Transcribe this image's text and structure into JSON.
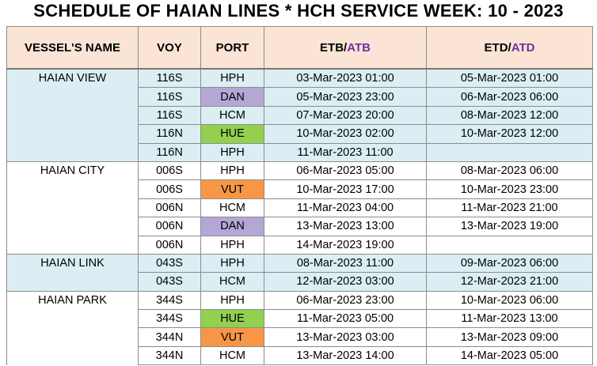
{
  "title": "SCHEDULE OF HAIAN LINES * HCH SERVICE WEEK: 10 - 2023",
  "header": {
    "columns": [
      {
        "parts": [
          "VESSEL'S NAME"
        ]
      },
      {
        "parts": [
          "VOY"
        ]
      },
      {
        "parts": [
          "PORT"
        ]
      },
      {
        "parts": [
          "ETB",
          "/",
          "ATB"
        ]
      },
      {
        "parts": [
          "ETD",
          "/",
          "ATD"
        ]
      }
    ],
    "accent_color": "#7030a0"
  },
  "port_colors": {
    "DAN": "#b4a7d6",
    "HUE": "#92d050",
    "VUT": "#f79646"
  },
  "groups": [
    {
      "vessel": "HAIAN VIEW",
      "shaded": true,
      "rows": [
        [
          "116S",
          "HPH",
          "03-Mar-2023 01:00",
          "05-Mar-2023 01:00"
        ],
        [
          "116S",
          "DAN",
          "05-Mar-2023 23:00",
          "06-Mar-2023 06:00"
        ],
        [
          "116S",
          "HCM",
          "07-Mar-2023 20:00",
          "08-Mar-2023 12:00"
        ],
        [
          "116N",
          "HUE",
          "10-Mar-2023 02:00",
          "10-Mar-2023 12:00"
        ],
        [
          "116N",
          "HPH",
          "11-Mar-2023 11:00",
          null
        ]
      ]
    },
    {
      "vessel": "HAIAN CITY",
      "shaded": false,
      "rows": [
        [
          "006S",
          "HPH",
          "06-Mar-2023 05:00",
          "08-Mar-2023 06:00"
        ],
        [
          "006S",
          "VUT",
          "10-Mar-2023 17:00",
          "10-Mar-2023 23:00"
        ],
        [
          "006N",
          "HCM",
          "11-Mar-2023 04:00",
          "11-Mar-2023 21:00"
        ],
        [
          "006N",
          "DAN",
          "13-Mar-2023 13:00",
          "13-Mar-2023 19:00"
        ],
        [
          "006N",
          "HPH",
          "14-Mar-2023 19:00",
          null
        ]
      ]
    },
    {
      "vessel": "HAIAN LINK",
      "shaded": true,
      "rows": [
        [
          "043S",
          "HPH",
          "08-Mar-2023 11:00",
          "09-Mar-2023 06:00"
        ],
        [
          "043S",
          "HCM",
          "12-Mar-2023 03:00",
          "12-Mar-2023 21:00"
        ]
      ]
    },
    {
      "vessel": "HAIAN PARK",
      "shaded": false,
      "rows": [
        [
          "344S",
          "HPH",
          "06-Mar-2023 23:00",
          "10-Mar-2023 06:00"
        ],
        [
          "344S",
          "HUE",
          "11-Mar-2023 05:00",
          "11-Mar-2023 13:00"
        ],
        [
          "344N",
          "VUT",
          "13-Mar-2023 03:00",
          "13-Mar-2023 09:00"
        ],
        [
          "344N",
          "HCM",
          "13-Mar-2023 14:00",
          "14-Mar-2023 05:00"
        ]
      ]
    }
  ]
}
